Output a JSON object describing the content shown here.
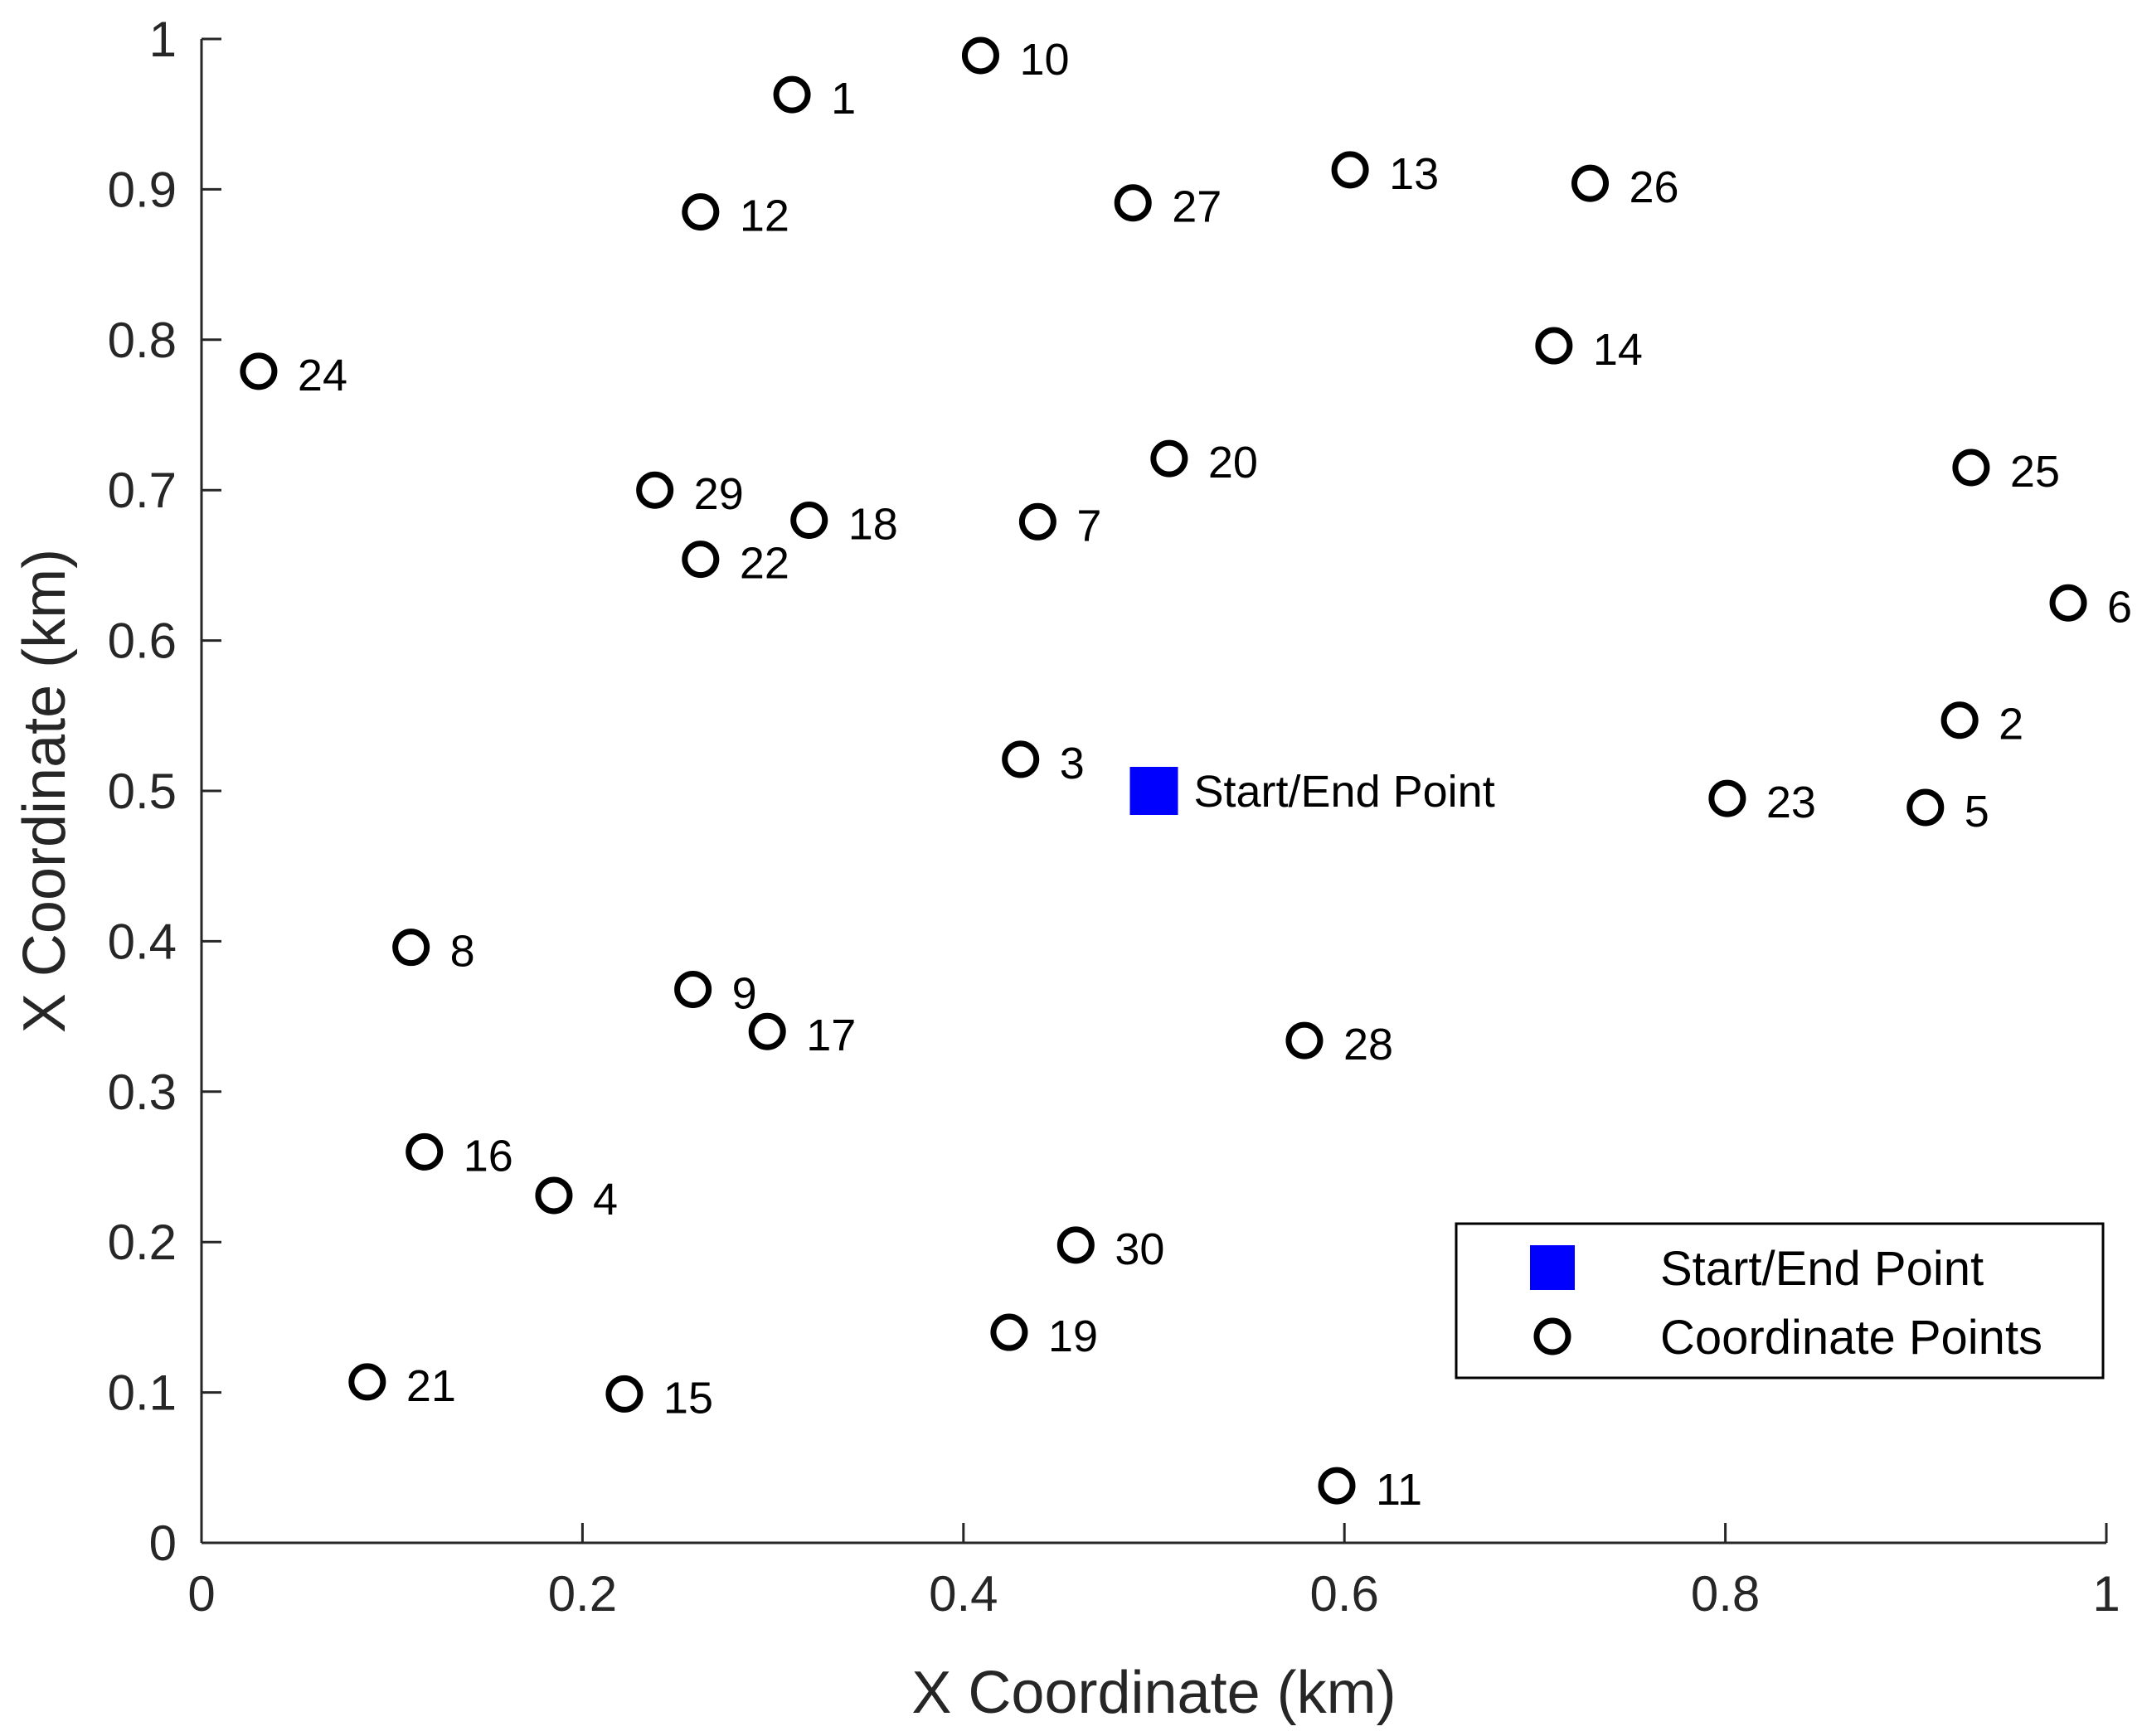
{
  "chart_data": {
    "type": "scatter",
    "title": "",
    "xlabel": "X Coordinate (km)",
    "ylabel": "X Coordinate (km)",
    "xlim": [
      0,
      1
    ],
    "ylim": [
      0,
      1
    ],
    "x_ticks": [
      0,
      0.2,
      0.4,
      0.6,
      0.8,
      1
    ],
    "y_ticks": [
      0,
      0.1,
      0.2,
      0.3,
      0.4,
      0.5,
      0.6,
      0.7,
      0.8,
      0.9,
      1
    ],
    "x_tick_labels": [
      "0",
      "0.2",
      "0.4",
      "0.6",
      "0.8",
      "1"
    ],
    "y_tick_labels": [
      "0",
      "0.1",
      "0.2",
      "0.3",
      "0.4",
      "0.5",
      "0.6",
      "0.7",
      "0.8",
      "0.9",
      "1"
    ],
    "grid": false,
    "legend_position": "bottom-right",
    "series": [
      {
        "name": "Start/End Point",
        "marker": "square",
        "color": "#0000ff",
        "points": [
          {
            "x": 0.5,
            "y": 0.5,
            "label": "Start/End Point"
          }
        ]
      },
      {
        "name": "Coordinate Points",
        "marker": "circle",
        "color": "#000000",
        "points": [
          {
            "x": 0.31,
            "y": 0.963,
            "label": "1"
          },
          {
            "x": 0.923,
            "y": 0.547,
            "label": "2"
          },
          {
            "x": 0.43,
            "y": 0.521,
            "label": "3"
          },
          {
            "x": 0.185,
            "y": 0.231,
            "label": "4"
          },
          {
            "x": 0.905,
            "y": 0.489,
            "label": "5"
          },
          {
            "x": 0.98,
            "y": 0.625,
            "label": "6"
          },
          {
            "x": 0.439,
            "y": 0.679,
            "label": "7"
          },
          {
            "x": 0.11,
            "y": 0.396,
            "label": "8"
          },
          {
            "x": 0.258,
            "y": 0.368,
            "label": "9"
          },
          {
            "x": 0.409,
            "y": 0.989,
            "label": "10"
          },
          {
            "x": 0.596,
            "y": 0.038,
            "label": "11"
          },
          {
            "x": 0.262,
            "y": 0.885,
            "label": "12"
          },
          {
            "x": 0.603,
            "y": 0.913,
            "label": "13"
          },
          {
            "x": 0.71,
            "y": 0.796,
            "label": "14"
          },
          {
            "x": 0.222,
            "y": 0.099,
            "label": "15"
          },
          {
            "x": 0.117,
            "y": 0.26,
            "label": "16"
          },
          {
            "x": 0.297,
            "y": 0.34,
            "label": "17"
          },
          {
            "x": 0.319,
            "y": 0.68,
            "label": "18"
          },
          {
            "x": 0.424,
            "y": 0.14,
            "label": "19"
          },
          {
            "x": 0.508,
            "y": 0.721,
            "label": "20"
          },
          {
            "x": 0.087,
            "y": 0.107,
            "label": "21"
          },
          {
            "x": 0.262,
            "y": 0.654,
            "label": "22"
          },
          {
            "x": 0.801,
            "y": 0.495,
            "label": "23"
          },
          {
            "x": 0.03,
            "y": 0.779,
            "label": "24"
          },
          {
            "x": 0.929,
            "y": 0.715,
            "label": "25"
          },
          {
            "x": 0.729,
            "y": 0.904,
            "label": "26"
          },
          {
            "x": 0.489,
            "y": 0.891,
            "label": "27"
          },
          {
            "x": 0.579,
            "y": 0.334,
            "label": "28"
          },
          {
            "x": 0.238,
            "y": 0.7,
            "label": "29"
          },
          {
            "x": 0.459,
            "y": 0.198,
            "label": "30"
          }
        ]
      }
    ]
  },
  "legend": {
    "start_end_label": "Start/End Point",
    "coordinate_points_label": "Coordinate Points"
  }
}
